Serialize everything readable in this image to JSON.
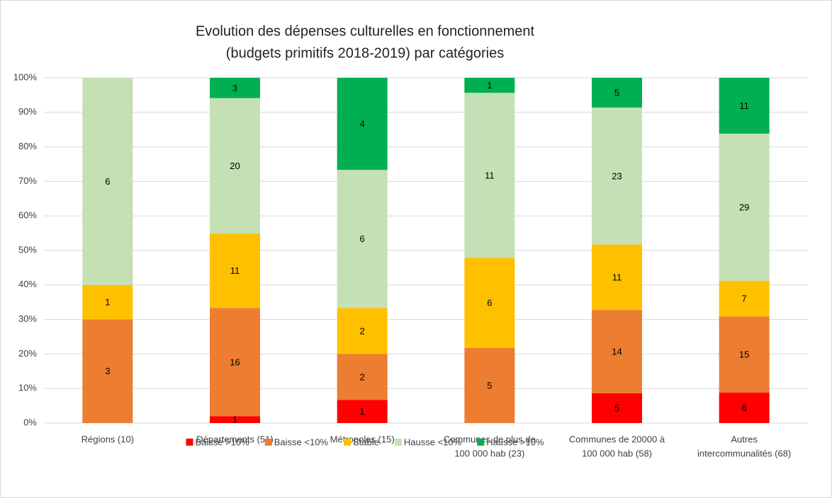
{
  "chart_data": {
    "type": "bar",
    "stacking": "percent",
    "title": [
      "Evolution des dépenses culturelles en fonctionnement",
      "(budgets primitifs 2018-2019) par catégories"
    ],
    "categories": [
      "Régions (10)",
      "Départements (51)",
      "Métropoles (15)",
      [
        "Communes de plus de",
        "100 000 hab (23)"
      ],
      [
        "Communes de 20000 à",
        "100 000 hab (58)"
      ],
      [
        "Autres",
        "intercommunalités (68)"
      ]
    ],
    "series": [
      {
        "name": "Baisse >10%",
        "color": "#ff0000",
        "values": [
          0,
          1,
          1,
          0,
          5,
          6
        ]
      },
      {
        "name": "Baisse <10%",
        "color": "#ed7d31",
        "values": [
          3,
          16,
          2,
          5,
          14,
          15
        ]
      },
      {
        "name": "Stable",
        "color": "#ffc000",
        "values": [
          1,
          11,
          2,
          6,
          11,
          7
        ]
      },
      {
        "name": "Hausse <10%",
        "color": "#c5e0b4",
        "values": [
          6,
          20,
          6,
          11,
          23,
          29
        ]
      },
      {
        "name": "Hausse >10%",
        "color": "#00b050",
        "values": [
          0,
          3,
          4,
          1,
          5,
          11
        ]
      }
    ],
    "ylim": [
      0,
      100
    ],
    "yticks": [
      {
        "value": 0,
        "label": "0%"
      },
      {
        "value": 10,
        "label": "10%"
      },
      {
        "value": 20,
        "label": "20%"
      },
      {
        "value": 30,
        "label": "30%"
      },
      {
        "value": 40,
        "label": "40%"
      },
      {
        "value": 50,
        "label": "50%"
      },
      {
        "value": 60,
        "label": "60%"
      },
      {
        "value": 70,
        "label": "70%"
      },
      {
        "value": 80,
        "label": "80%"
      },
      {
        "value": 90,
        "label": "90%"
      },
      {
        "value": 100,
        "label": "100%"
      }
    ],
    "grid": true,
    "legend": "bottom"
  }
}
